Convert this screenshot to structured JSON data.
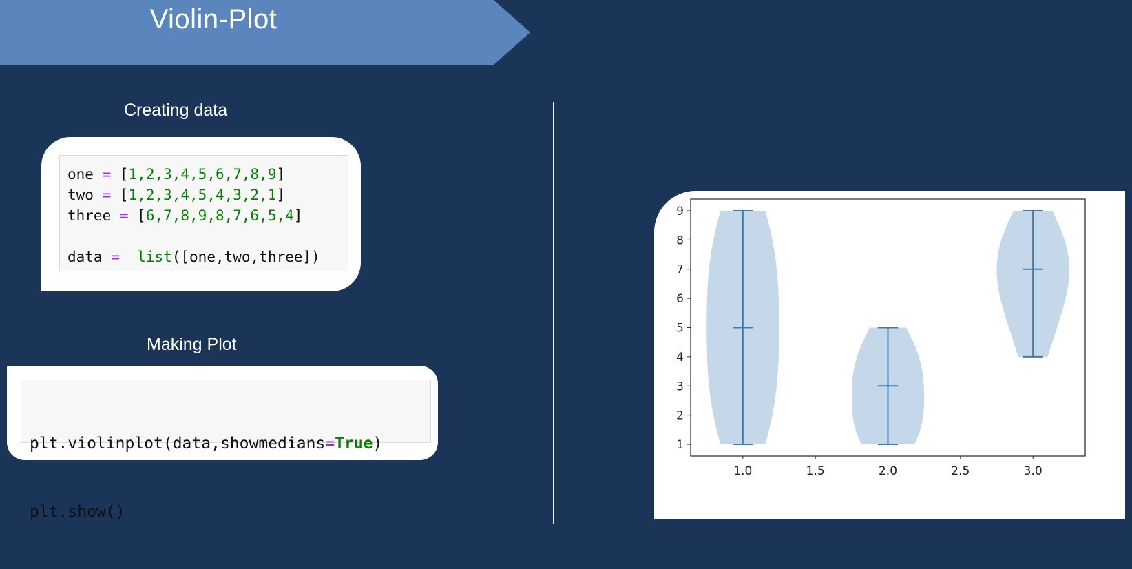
{
  "header": {
    "title": "Violin-Plot"
  },
  "sections": {
    "creating_label": "Creating data",
    "making_label": "Making Plot"
  },
  "code_create": [
    [
      "one ",
      "=",
      " [",
      "1,2,3,4,5,6,7,8,9",
      "]"
    ],
    [
      "two ",
      "=",
      " [",
      "1,2,3,4,5,4,3,2,1",
      "]"
    ],
    [
      "three ",
      "=",
      " [",
      "6,7,8,9,8,7,6,5,4",
      "]"
    ],
    [
      "",
      "",
      "",
      "",
      ""
    ],
    [
      "data ",
      "=",
      "  ",
      "list",
      "([one,two,three])"
    ]
  ],
  "code_plot": {
    "line1": {
      "a": "plt.violinplot(data,showmedians",
      "op": "=",
      "kw": "True",
      "b": ")"
    },
    "line2": "plt.show()"
  },
  "colors": {
    "background": "#1b3558",
    "banner": "#5b86bd",
    "violin_fill": "#c5d8ea",
    "violin_line": "#3d7bb0"
  },
  "chart_data": {
    "type": "violin",
    "showmedians": true,
    "positions": [
      1.0,
      2.0,
      3.0
    ],
    "series": [
      {
        "values": [
          1,
          2,
          3,
          4,
          5,
          6,
          7,
          8,
          9
        ],
        "min": 1,
        "median": 5,
        "max": 9
      },
      {
        "values": [
          1,
          2,
          3,
          4,
          5,
          4,
          3,
          2,
          1
        ],
        "min": 1,
        "median": 3,
        "max": 5
      },
      {
        "values": [
          6,
          7,
          8,
          9,
          8,
          7,
          6,
          5,
          4
        ],
        "min": 4,
        "median": 7,
        "max": 9
      }
    ],
    "xticks": [
      "1.0",
      "1.5",
      "2.0",
      "2.5",
      "3.0"
    ],
    "yticks": [
      "1",
      "2",
      "3",
      "4",
      "5",
      "6",
      "7",
      "8",
      "9"
    ],
    "xlim": [
      0.64,
      3.36
    ],
    "ylim": [
      0.6,
      9.4
    ],
    "grid": false
  }
}
